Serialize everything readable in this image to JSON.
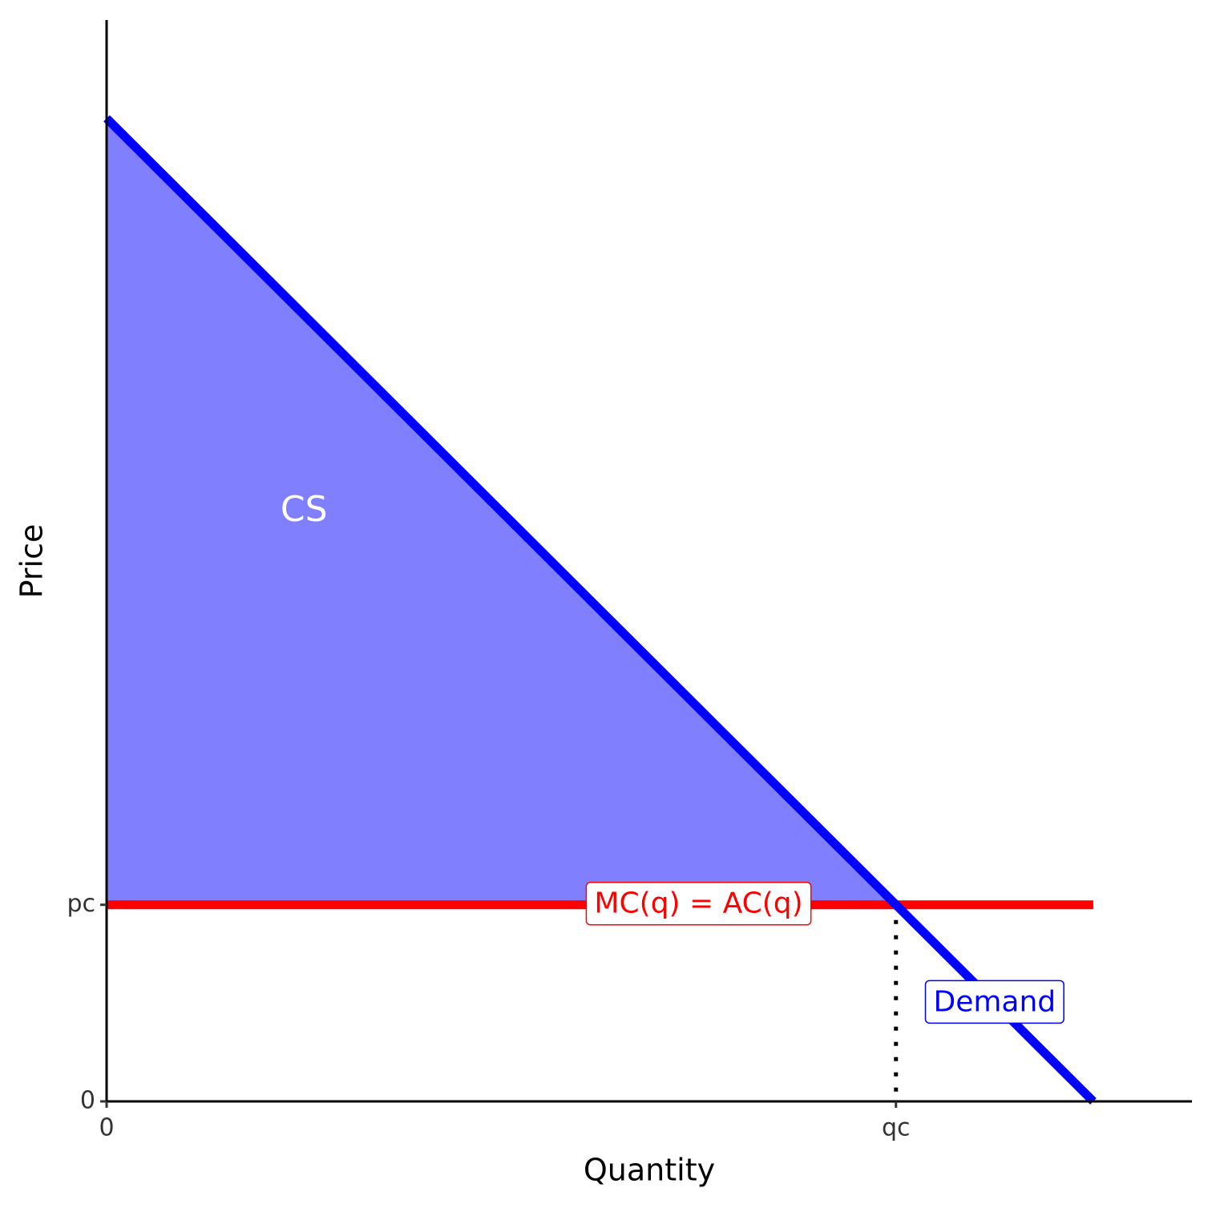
{
  "chart_data": {
    "type": "line",
    "x_label": "Quantity",
    "y_label": "Price",
    "xlim": [
      0,
      11
    ],
    "ylim": [
      0,
      11
    ],
    "xticks": [
      0,
      {
        "value": 8,
        "label": "qc"
      }
    ],
    "yticks": [
      0,
      {
        "value": 2,
        "label": "pc"
      }
    ],
    "series": [
      {
        "name": "Demand",
        "color": "#0000ff",
        "x": [
          0,
          10
        ],
        "values": [
          10,
          0
        ]
      },
      {
        "name": "MC(q) = AC(q)",
        "color": "#ff0000",
        "x": [
          0,
          10
        ],
        "values": [
          2,
          2
        ]
      }
    ],
    "shade": {
      "label": "CS",
      "color": "#8080ff"
    }
  }
}
